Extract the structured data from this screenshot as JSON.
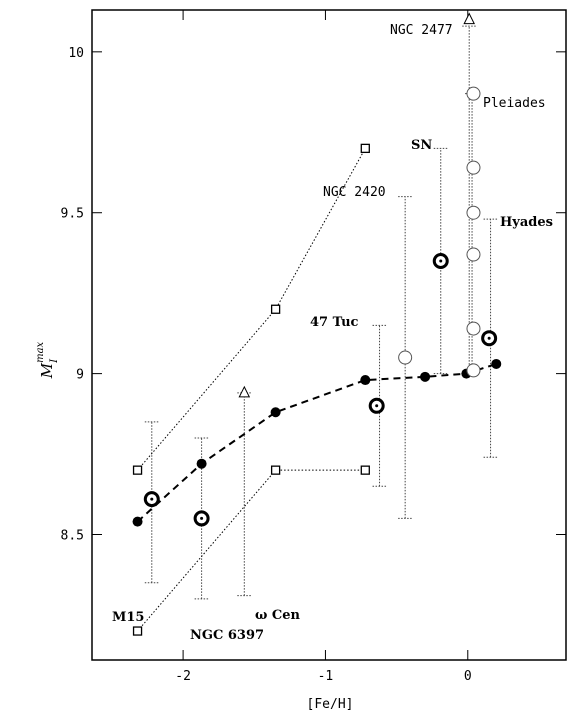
{
  "chart_data": {
    "type": "scatter",
    "xlabel": "[Fe/H]",
    "ylabel": {
      "main": "M",
      "sub": "I",
      "sup": "max"
    },
    "xlim": [
      -2.64,
      0.69
    ],
    "ylim": [
      8.11,
      10.13
    ],
    "xticks": [
      -2,
      -1,
      0
    ],
    "yticks": [
      8.5,
      9,
      9.5,
      10
    ],
    "filled": {
      "x": [
        -2.32,
        -1.87,
        -1.35,
        -0.72,
        -0.3,
        -0.01,
        0.2
      ],
      "y": [
        8.54,
        8.72,
        8.88,
        8.98,
        8.99,
        9.0,
        9.03
      ]
    },
    "upper_squares": {
      "x": [
        -2.32,
        -1.35,
        -0.72
      ],
      "y": [
        8.7,
        9.2,
        9.7
      ]
    },
    "lower_squares": {
      "x": [
        -2.32,
        -1.35,
        -0.72
      ],
      "y": [
        8.2,
        8.7,
        8.7
      ]
    },
    "clusters": {
      "x": [
        -2.22,
        -1.87,
        -0.64,
        -0.19,
        0.15
      ],
      "y": [
        8.61,
        8.55,
        8.9,
        9.35,
        9.11
      ]
    },
    "open_circles": {
      "x": [
        -0.44,
        0.04,
        0.04,
        0.04,
        0.04,
        0.04,
        0.04
      ],
      "y": [
        9.05,
        9.87,
        9.64,
        9.5,
        9.37,
        9.14,
        9.01
      ]
    },
    "triangles": {
      "x": [
        -1.57,
        0.01
      ],
      "y": [
        8.94,
        10.1
      ]
    },
    "error_bars": {
      "x": [
        -2.22,
        -1.87,
        -1.57,
        -0.62,
        -0.44,
        -0.19,
        0.01,
        0.03,
        0.16
      ],
      "low": [
        8.35,
        8.3,
        8.31,
        8.65,
        8.55,
        9.0,
        9.0,
        9.0,
        8.74
      ],
      "high": [
        8.85,
        8.8,
        8.94,
        9.15,
        9.55,
        9.7,
        10.08,
        9.87,
        9.48
      ]
    },
    "labels": [
      "NGC 2477",
      "Pleiades",
      "SN",
      "NGC 2420",
      "Hyades",
      "47 Tuc",
      "M15",
      "NGC 6397",
      "ω Cen"
    ]
  }
}
